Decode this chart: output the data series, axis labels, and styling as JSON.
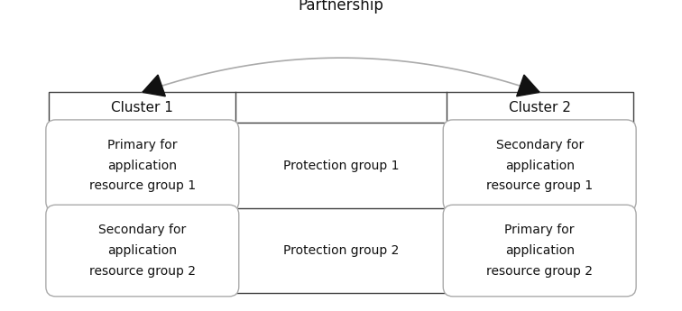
{
  "fig_width": 7.56,
  "fig_height": 3.45,
  "dpi": 100,
  "bg_color": "#ffffff",
  "border_color": "#404040",
  "rounded_box_border": "#aaaaaa",
  "arc_color": "#aaaaaa",
  "arrow_color": "#111111",
  "text_color": "#111111",
  "partnership_label": "Partnership",
  "cluster1_label": "Cluster 1",
  "cluster2_label": "Cluster 2",
  "pg1_label": "Protection group 1",
  "pg2_label": "Protection group 2",
  "row1_left_text": "Primary for\napplication\nresource group 1",
  "row1_right_text": "Secondary for\napplication\nresource group 1",
  "row2_left_text": "Secondary for\napplication\nresource group 2",
  "row2_right_text": "Primary for\napplication\nresource group 2",
  "font_size_cluster": 11,
  "font_size_pg": 10,
  "font_size_cell": 10,
  "font_size_partner": 12,
  "grid_lw": 1.0,
  "arc_lw": 1.2,
  "arrow_mutation_scale": 22
}
